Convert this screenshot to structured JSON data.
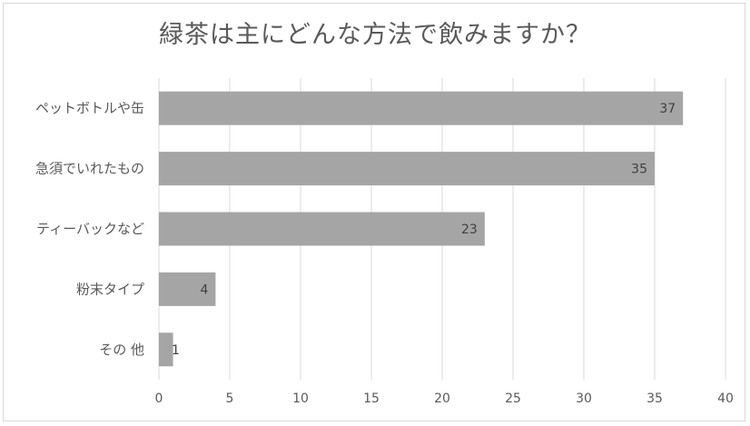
{
  "chart_data": {
    "type": "bar",
    "orientation": "horizontal",
    "title": "緑茶は主にどんな方法で飲みますか？",
    "categories": [
      "ペットボトルや缶",
      "急須でいれたもの",
      "ティーバックなど",
      "粉末タイプ",
      "その 他"
    ],
    "values": [
      37,
      35,
      23,
      4,
      1
    ],
    "xlim": [
      0,
      40
    ],
    "ticks": [
      "0",
      "5",
      "10",
      "15",
      "20",
      "25",
      "30",
      "35",
      "40"
    ],
    "grid": "vertical",
    "bar_color": "#a5a5a5",
    "data_labels": true
  }
}
